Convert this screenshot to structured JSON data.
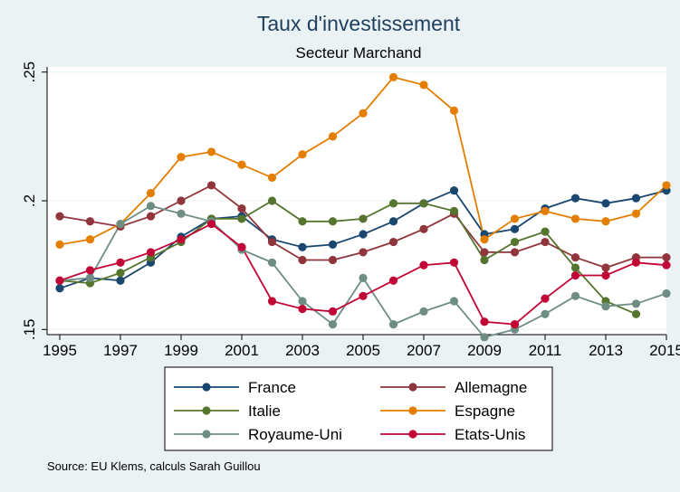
{
  "chart_data": {
    "type": "line",
    "title": "Taux d'investissement",
    "subtitle": "Secteur Marchand",
    "source": "Source: EU Klems, calculs Sarah Guillou",
    "xlim": [
      1995,
      2015
    ],
    "ylim": [
      0.148,
      0.252
    ],
    "x_ticks": [
      1995,
      1997,
      1999,
      2001,
      2003,
      2005,
      2007,
      2009,
      2011,
      2013,
      2015
    ],
    "y_ticks": [
      0.15,
      0.2,
      0.25
    ],
    "y_tick_labels": [
      ".15",
      ".2",
      ".25"
    ],
    "grid": "horizontal",
    "legend_position": "bottom",
    "series": [
      {
        "name": "France",
        "color": "#1a476f",
        "x": [
          1995,
          1996,
          1997,
          1998,
          1999,
          2000,
          2001,
          2002,
          2003,
          2004,
          2005,
          2006,
          2007,
          2008,
          2009,
          2010,
          2011,
          2012,
          2013,
          2014,
          2015
        ],
        "y": [
          0.166,
          0.17,
          0.169,
          0.176,
          0.186,
          0.193,
          0.194,
          0.185,
          0.182,
          0.183,
          0.187,
          0.192,
          0.199,
          0.204,
          0.187,
          0.189,
          0.197,
          0.201,
          0.199,
          0.201,
          0.204
        ]
      },
      {
        "name": "Allemagne",
        "color": "#90353b",
        "x": [
          1995,
          1996,
          1997,
          1998,
          1999,
          2000,
          2001,
          2002,
          2003,
          2004,
          2005,
          2006,
          2007,
          2008,
          2009,
          2010,
          2011,
          2012,
          2013,
          2014,
          2015
        ],
        "y": [
          0.194,
          0.192,
          0.19,
          0.194,
          0.2,
          0.206,
          0.197,
          0.184,
          0.177,
          0.177,
          0.18,
          0.184,
          0.189,
          0.195,
          0.18,
          0.18,
          0.184,
          0.178,
          0.174,
          0.178,
          0.178
        ]
      },
      {
        "name": "Italie",
        "color": "#55752f",
        "x": [
          1995,
          1996,
          1997,
          1998,
          1999,
          2000,
          2001,
          2002,
          2003,
          2004,
          2005,
          2006,
          2007,
          2008,
          2009,
          2010,
          2011,
          2012,
          2013,
          2014
        ],
        "y": [
          0.169,
          0.168,
          0.172,
          0.178,
          0.184,
          0.193,
          0.193,
          0.2,
          0.192,
          0.192,
          0.193,
          0.199,
          0.199,
          0.196,
          0.177,
          0.184,
          0.188,
          0.174,
          0.161,
          0.156
        ]
      },
      {
        "name": "Espagne",
        "color": "#e37e00",
        "x": [
          1995,
          1996,
          1997,
          1998,
          1999,
          2000,
          2001,
          2002,
          2003,
          2004,
          2005,
          2006,
          2007,
          2008,
          2009,
          2010,
          2011,
          2012,
          2013,
          2014,
          2015
        ],
        "y": [
          0.183,
          0.185,
          0.191,
          0.203,
          0.217,
          0.219,
          0.214,
          0.209,
          0.218,
          0.225,
          0.234,
          0.248,
          0.245,
          0.235,
          0.185,
          0.193,
          0.196,
          0.193,
          0.192,
          0.195,
          0.206
        ]
      },
      {
        "name": "Royaume-Uni",
        "color": "#6e8e84",
        "x": [
          1995,
          1996,
          1997,
          1998,
          1999,
          2000,
          2001,
          2002,
          2003,
          2004,
          2005,
          2006,
          2007,
          2008,
          2009,
          2010,
          2011,
          2012,
          2013,
          2014,
          2015
        ],
        "y": [
          0.169,
          0.17,
          0.191,
          0.198,
          0.195,
          0.192,
          0.181,
          0.176,
          0.161,
          0.152,
          0.17,
          0.152,
          0.157,
          0.161,
          0.147,
          0.15,
          0.156,
          0.163,
          0.159,
          0.16,
          0.164
        ]
      },
      {
        "name": "Etats-Unis",
        "color": "#c10534",
        "x": [
          1995,
          1996,
          1997,
          1998,
          1999,
          2000,
          2001,
          2002,
          2003,
          2004,
          2005,
          2006,
          2007,
          2008,
          2009,
          2010,
          2011,
          2012,
          2013,
          2014,
          2015
        ],
        "y": [
          0.169,
          0.173,
          0.176,
          0.18,
          0.185,
          0.191,
          0.182,
          0.161,
          0.158,
          0.157,
          0.163,
          0.169,
          0.175,
          0.176,
          0.153,
          0.152,
          0.162,
          0.171,
          0.171,
          0.176,
          0.175
        ]
      }
    ]
  }
}
